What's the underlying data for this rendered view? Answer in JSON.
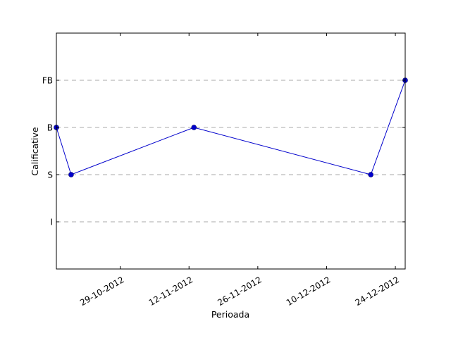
{
  "chart_data": {
    "type": "line",
    "title": "",
    "xlabel": "Perioada",
    "ylabel": "Calificative",
    "x_axis_type": "date",
    "xlim": [
      "2012-10-16",
      "2012-12-26"
    ],
    "x_ticks": [
      "2012-10-29",
      "2012-11-12",
      "2012-11-26",
      "2012-12-10",
      "2012-12-24"
    ],
    "x_tick_labels": [
      "29-10-2012",
      "12-11-2012",
      "26-11-2012",
      "10-12-2012",
      "24-12-2012"
    ],
    "y_levels": [
      "I",
      "S",
      "B",
      "FB"
    ],
    "ylim": [
      0,
      5
    ],
    "y_ticks": [
      1,
      2,
      3,
      4
    ],
    "grid": "y-dashed",
    "line_color": "#0000cc",
    "marker_color": "#0000cc",
    "series": [
      {
        "x": [
          "2012-10-16",
          "2012-10-19",
          "2012-11-13",
          "2012-12-19",
          "2012-12-26"
        ],
        "y": [
          "B",
          "S",
          "B",
          "S",
          "FB"
        ]
      }
    ]
  }
}
